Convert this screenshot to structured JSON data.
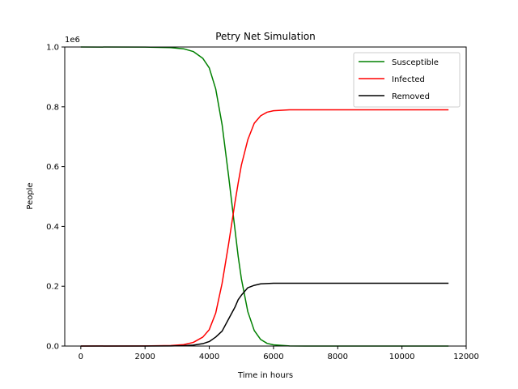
{
  "chart_data": {
    "type": "line",
    "title": "Petry Net Simulation",
    "xlabel": "Time in hours",
    "ylabel": "People",
    "y_offset_label": "1e6",
    "xlim": [
      -500,
      12000
    ],
    "ylim": [
      0,
      1000000
    ],
    "x_ticks": [
      0,
      2000,
      4000,
      6000,
      8000,
      10000,
      12000
    ],
    "x_tick_labels": [
      "0",
      "2000",
      "4000",
      "6000",
      "8000",
      "10000",
      "12000"
    ],
    "y_ticks": [
      0,
      200000,
      400000,
      600000,
      800000,
      1000000
    ],
    "y_tick_labels": [
      "0.0",
      "0.2",
      "0.4",
      "0.6",
      "0.8",
      "1.0"
    ],
    "grid": false,
    "legend_position": "upper right",
    "series": [
      {
        "name": "Susceptible",
        "color": "#008000",
        "x": [
          0,
          2000,
          2800,
          3200,
          3500,
          3800,
          4000,
          4200,
          4400,
          4600,
          4700,
          4800,
          4900,
          5000,
          5200,
          5400,
          5600,
          5800,
          6000,
          6500,
          7000,
          8000,
          10000,
          11450
        ],
        "y": [
          1000000,
          999500,
          998000,
          994000,
          985000,
          962000,
          930000,
          860000,
          740000,
          570000,
          480000,
          390000,
          300000,
          225000,
          115000,
          52000,
          22000,
          9000,
          4000,
          500,
          50,
          0,
          0,
          0
        ]
      },
      {
        "name": "Infected",
        "color": "#ff0000",
        "x": [
          0,
          2000,
          2800,
          3200,
          3500,
          3800,
          4000,
          4200,
          4400,
          4600,
          4700,
          4800,
          4900,
          5000,
          5200,
          5400,
          5600,
          5800,
          6000,
          6500,
          7000,
          8000,
          10000,
          11450
        ],
        "y": [
          0,
          500,
          1600,
          4800,
          12000,
          30000,
          55000,
          110000,
          210000,
          340000,
          410000,
          480000,
          545000,
          605000,
          690000,
          745000,
          770000,
          782000,
          787000,
          790000,
          790000,
          790000,
          790000,
          790000
        ]
      },
      {
        "name": "Removed",
        "color": "#000000",
        "x": [
          0,
          2000,
          2800,
          3200,
          3500,
          3800,
          4000,
          4200,
          4400,
          4600,
          4700,
          4800,
          4900,
          5000,
          5200,
          5400,
          5600,
          5800,
          6000,
          6500,
          7000,
          8000,
          10000,
          11450
        ],
        "y": [
          0,
          100,
          400,
          1200,
          3000,
          8000,
          15000,
          30000,
          50000,
          90000,
          110000,
          130000,
          155000,
          170000,
          195000,
          203000,
          208000,
          209000,
          210000,
          210000,
          210000,
          210000,
          210000,
          210000
        ]
      }
    ]
  }
}
